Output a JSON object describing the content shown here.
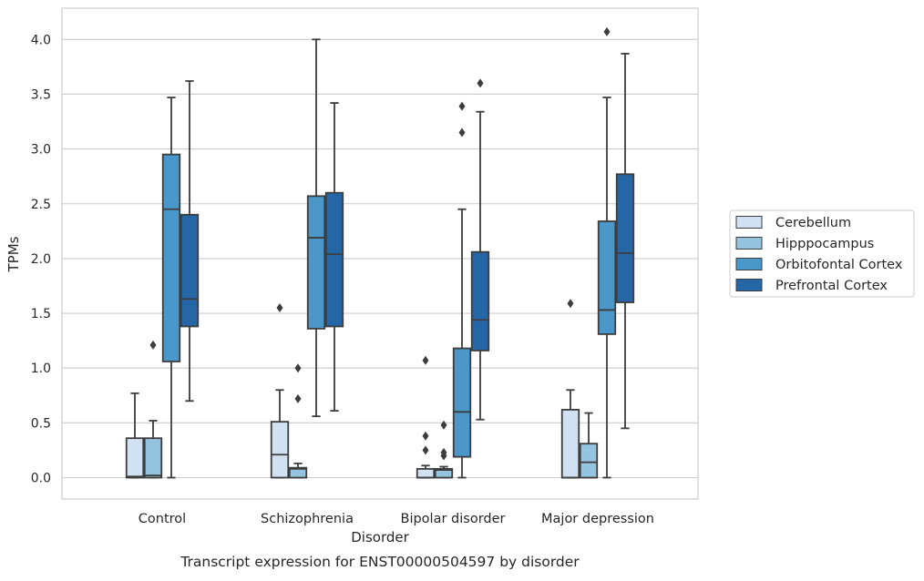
{
  "chart_data": {
    "type": "box",
    "title": "",
    "caption": "Transcript expression for ENST00000504597 by disorder",
    "xlabel": "Disorder",
    "ylabel": "TPMs",
    "ylim": [
      -0.2,
      4.28
    ],
    "yticks": [
      "0.0",
      "0.5",
      "1.0",
      "1.5",
      "2.0",
      "2.5",
      "3.0",
      "3.5",
      "4.0"
    ],
    "grid": "horizontal",
    "legend_position": "right",
    "categories": [
      "Control",
      "Schizophrenia",
      "Bipolar disorder",
      "Major depression"
    ],
    "series": [
      {
        "name": "Cerebellum",
        "color": "#d0e1f2",
        "boxes": [
          {
            "q1": 0.0,
            "median": 0.01,
            "q3": 0.36,
            "whisker_low": 0.0,
            "whisker_high": 0.77,
            "outliers": []
          },
          {
            "q1": 0.0,
            "median": 0.21,
            "q3": 0.51,
            "whisker_low": 0.0,
            "whisker_high": 0.8,
            "outliers": [
              1.55
            ]
          },
          {
            "q1": 0.0,
            "median": 0.0,
            "q3": 0.08,
            "whisker_low": 0.0,
            "whisker_high": 0.11,
            "outliers": [
              1.07,
              0.38,
              0.25
            ]
          },
          {
            "q1": 0.0,
            "median": 0.0,
            "q3": 0.62,
            "whisker_low": 0.0,
            "whisker_high": 0.8,
            "outliers": [
              1.59
            ]
          }
        ]
      },
      {
        "name": "Hipppocampus",
        "color": "#94c4df",
        "boxes": [
          {
            "q1": 0.0,
            "median": 0.02,
            "q3": 0.36,
            "whisker_low": 0.0,
            "whisker_high": 0.52,
            "outliers": [
              1.21
            ]
          },
          {
            "q1": 0.0,
            "median": 0.08,
            "q3": 0.09,
            "whisker_low": 0.0,
            "whisker_high": 0.13,
            "outliers": [
              1.0,
              0.72
            ]
          },
          {
            "q1": 0.0,
            "median": 0.07,
            "q3": 0.08,
            "whisker_low": 0.0,
            "whisker_high": 0.1,
            "outliers": [
              0.48,
              0.23,
              0.2
            ]
          },
          {
            "q1": 0.0,
            "median": 0.14,
            "q3": 0.31,
            "whisker_low": 0.0,
            "whisker_high": 0.59,
            "outliers": []
          }
        ]
      },
      {
        "name": "Orbitofontal Cortex",
        "color": "#4a98c9",
        "boxes": [
          {
            "q1": 1.06,
            "median": 2.45,
            "q3": 2.95,
            "whisker_low": 0.0,
            "whisker_high": 3.47,
            "outliers": []
          },
          {
            "q1": 1.36,
            "median": 2.19,
            "q3": 2.57,
            "whisker_low": 0.56,
            "whisker_high": 4.0,
            "outliers": []
          },
          {
            "q1": 0.19,
            "median": 0.6,
            "q3": 1.18,
            "whisker_low": 0.0,
            "whisker_high": 2.45,
            "outliers": [
              3.39,
              3.15
            ]
          },
          {
            "q1": 1.31,
            "median": 1.53,
            "q3": 2.34,
            "whisker_low": 0.0,
            "whisker_high": 3.47,
            "outliers": [
              4.07
            ]
          }
        ]
      },
      {
        "name": "Prefrontal Cortex",
        "color": "#2566a6",
        "boxes": [
          {
            "q1": 1.38,
            "median": 1.63,
            "q3": 2.4,
            "whisker_low": 0.7,
            "whisker_high": 3.62,
            "outliers": []
          },
          {
            "q1": 1.38,
            "median": 2.04,
            "q3": 2.6,
            "whisker_low": 0.61,
            "whisker_high": 3.42,
            "outliers": []
          },
          {
            "q1": 1.16,
            "median": 1.44,
            "q3": 2.06,
            "whisker_low": 0.53,
            "whisker_high": 3.34,
            "outliers": [
              3.6
            ]
          },
          {
            "q1": 1.6,
            "median": 2.05,
            "q3": 2.77,
            "whisker_low": 0.45,
            "whisker_high": 3.87,
            "outliers": []
          }
        ]
      }
    ]
  }
}
